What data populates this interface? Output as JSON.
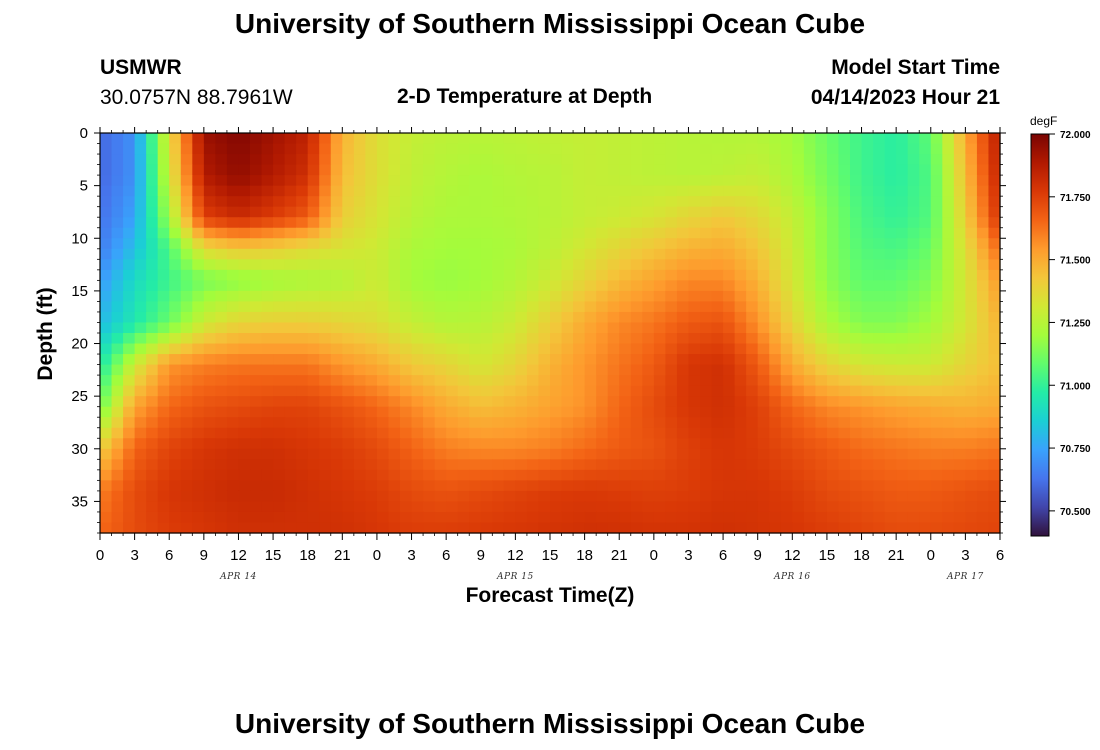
{
  "header": {
    "title": "University of Southern Mississippi Ocean Cube",
    "station": "USMWR",
    "coords": "30.0757N  88.7961W",
    "subtitle": "2-D Temperature at Depth",
    "model_label": "Model Start Time",
    "model_time": "04/14/2023 Hour 21",
    "footer_title": "University of Southern Mississippi Ocean Cube"
  },
  "colors": {
    "palette": [
      "#30123b",
      "#4145ab",
      "#4675ed",
      "#39a2fc",
      "#1bcfd4",
      "#24eca6",
      "#61fc6c",
      "#a4fc3b",
      "#d1e834",
      "#f3c63a",
      "#fe9b2d",
      "#f36315",
      "#d93806",
      "#b11901",
      "#7a0402"
    ]
  },
  "chart_data": {
    "type": "heatmap",
    "title": "2-D Temperature at Depth",
    "xlabel": "Forecast Time(Z)",
    "ylabel": "Depth (ft)",
    "colorbar_unit": "degF",
    "color_range": [
      70.4,
      72.0
    ],
    "colorbar_ticks": [
      "72.000",
      "71.750",
      "71.500",
      "71.250",
      "71.000",
      "70.750",
      "70.500"
    ],
    "colorbar_tick_values": [
      72.0,
      71.75,
      71.5,
      71.25,
      71.0,
      70.75,
      70.5
    ],
    "x_hour_range": [
      0,
      78
    ],
    "x_tick_hours": [
      0,
      3,
      6,
      9,
      12,
      15,
      18,
      21,
      24,
      27,
      30,
      33,
      36,
      39,
      42,
      45,
      48,
      51,
      54,
      57,
      60,
      63,
      66,
      69,
      72,
      75,
      78
    ],
    "x_tick_labels": [
      "0",
      "3",
      "6",
      "9",
      "12",
      "15",
      "18",
      "21",
      "0",
      "3",
      "6",
      "9",
      "12",
      "15",
      "18",
      "21",
      "0",
      "3",
      "6",
      "9",
      "12",
      "15",
      "18",
      "21",
      "0",
      "3",
      "6"
    ],
    "day_labels": [
      "APR 14",
      "APR 15",
      "APR 16",
      "APR 17"
    ],
    "day_label_hours": [
      12,
      36,
      60,
      75
    ],
    "y_range": [
      0,
      38
    ],
    "y_ticks": [
      0,
      5,
      10,
      15,
      20,
      25,
      30,
      35
    ],
    "y_tick_labels": [
      "0",
      "5",
      "10",
      "15",
      "20",
      "25",
      "30",
      "35"
    ],
    "profile_depths_ft": [
      0,
      4,
      8,
      11,
      14,
      18,
      22,
      26,
      30,
      34,
      38
    ],
    "profile_hours": [
      0,
      3,
      6,
      9,
      12,
      15,
      18,
      21,
      24,
      27,
      30,
      33,
      36,
      39,
      42,
      45,
      48,
      51,
      54,
      57,
      60,
      63,
      66,
      69,
      72,
      75,
      78
    ],
    "temperature_degF": [
      [
        70.6,
        70.7,
        71.35,
        71.93,
        71.98,
        71.92,
        71.85,
        71.48,
        71.35,
        71.28,
        71.26,
        71.25,
        71.26,
        71.27,
        71.28,
        71.27,
        71.26,
        71.25,
        71.24,
        71.24,
        71.2,
        71.1,
        71.02,
        70.98,
        71.08,
        71.5,
        71.88
      ],
      [
        70.6,
        70.7,
        71.3,
        71.88,
        71.95,
        71.88,
        71.8,
        71.45,
        71.35,
        71.27,
        71.24,
        71.22,
        71.24,
        71.25,
        71.28,
        71.27,
        71.26,
        71.25,
        71.26,
        71.28,
        71.22,
        71.12,
        71.02,
        70.98,
        71.05,
        71.45,
        71.85
      ],
      [
        70.62,
        70.75,
        71.2,
        71.75,
        71.82,
        71.76,
        71.68,
        71.4,
        71.33,
        71.25,
        71.22,
        71.22,
        71.23,
        71.25,
        71.28,
        71.3,
        71.33,
        71.38,
        71.42,
        71.37,
        71.28,
        71.15,
        71.04,
        71.0,
        71.06,
        71.4,
        71.8
      ],
      [
        70.65,
        70.82,
        71.05,
        71.36,
        71.42,
        71.4,
        71.36,
        71.33,
        71.3,
        71.22,
        71.2,
        71.2,
        71.22,
        71.26,
        71.32,
        71.38,
        71.43,
        71.48,
        71.5,
        71.43,
        71.3,
        71.15,
        71.06,
        71.04,
        71.1,
        71.35,
        71.65
      ],
      [
        70.72,
        70.9,
        71.02,
        71.12,
        71.16,
        71.2,
        71.22,
        71.24,
        71.3,
        71.2,
        71.18,
        71.2,
        71.24,
        71.3,
        71.38,
        71.46,
        71.52,
        71.58,
        71.58,
        71.48,
        71.32,
        71.16,
        71.08,
        71.08,
        71.14,
        71.32,
        71.55
      ],
      [
        70.8,
        70.95,
        71.1,
        71.3,
        71.38,
        71.4,
        71.4,
        71.38,
        71.35,
        71.28,
        71.24,
        71.25,
        71.3,
        71.4,
        71.5,
        71.58,
        71.62,
        71.68,
        71.7,
        71.56,
        71.38,
        71.22,
        71.14,
        71.14,
        71.2,
        71.32,
        71.48
      ],
      [
        70.95,
        71.3,
        71.55,
        71.6,
        71.62,
        71.62,
        71.62,
        71.55,
        71.5,
        71.42,
        71.38,
        71.32,
        71.38,
        71.48,
        71.55,
        71.62,
        71.68,
        71.78,
        71.8,
        71.68,
        71.5,
        71.38,
        71.32,
        71.3,
        71.3,
        71.38,
        71.45
      ],
      [
        71.1,
        71.52,
        71.65,
        71.7,
        71.72,
        71.74,
        71.74,
        71.7,
        71.65,
        71.58,
        71.5,
        71.45,
        71.48,
        71.52,
        71.56,
        71.65,
        71.72,
        71.78,
        71.8,
        71.75,
        71.65,
        71.58,
        71.55,
        71.52,
        71.5,
        71.48,
        71.5
      ],
      [
        71.4,
        71.66,
        71.74,
        71.78,
        71.8,
        71.8,
        71.78,
        71.76,
        71.72,
        71.66,
        71.6,
        71.58,
        71.58,
        71.6,
        71.64,
        71.68,
        71.7,
        71.75,
        71.78,
        71.76,
        71.72,
        71.68,
        71.64,
        71.62,
        71.6,
        71.6,
        71.62
      ],
      [
        71.6,
        71.72,
        71.78,
        71.8,
        71.82,
        71.82,
        71.8,
        71.78,
        71.76,
        71.72,
        71.7,
        71.72,
        71.74,
        71.76,
        71.77,
        71.76,
        71.75,
        71.76,
        71.78,
        71.78,
        71.76,
        71.72,
        71.7,
        71.68,
        71.68,
        71.7,
        71.72
      ],
      [
        71.65,
        71.72,
        71.76,
        71.78,
        71.8,
        71.8,
        71.8,
        71.8,
        71.78,
        71.76,
        71.76,
        71.77,
        71.78,
        71.79,
        71.8,
        71.8,
        71.79,
        71.79,
        71.8,
        71.79,
        71.78,
        71.76,
        71.74,
        71.72,
        71.72,
        71.73,
        71.74
      ]
    ]
  }
}
